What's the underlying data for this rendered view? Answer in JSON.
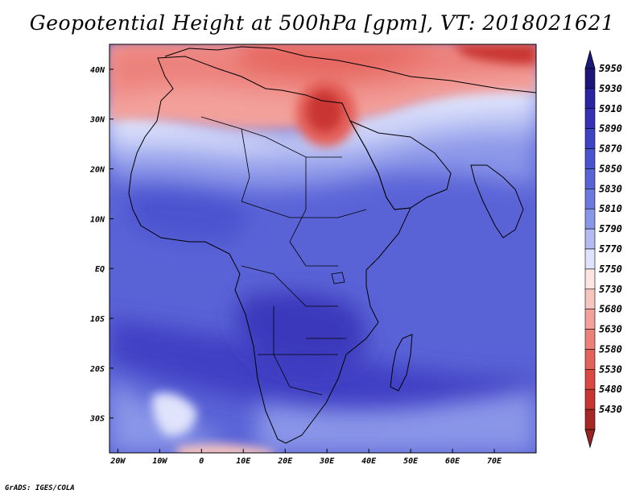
{
  "title": "Geopotential Height at 500hPa [gpm], VT: 2018021621",
  "credit": "GrADS: IGES/COLA",
  "map": {
    "lon_range": [
      -22,
      80
    ],
    "lat_range": [
      -37,
      45
    ],
    "lon_ticks": [
      {
        "value": -20,
        "label": "20W"
      },
      {
        "value": -10,
        "label": "10W"
      },
      {
        "value": 0,
        "label": "0"
      },
      {
        "value": 10,
        "label": "10E"
      },
      {
        "value": 20,
        "label": "20E"
      },
      {
        "value": 30,
        "label": "30E"
      },
      {
        "value": 40,
        "label": "40E"
      },
      {
        "value": 50,
        "label": "50E"
      },
      {
        "value": 60,
        "label": "60E"
      },
      {
        "value": 70,
        "label": "70E"
      }
    ],
    "lat_ticks": [
      {
        "value": 40,
        "label": "40N"
      },
      {
        "value": 30,
        "label": "30N"
      },
      {
        "value": 20,
        "label": "20N"
      },
      {
        "value": 10,
        "label": "10N"
      },
      {
        "value": 0,
        "label": "EQ"
      },
      {
        "value": -10,
        "label": "10S"
      },
      {
        "value": -20,
        "label": "20S"
      },
      {
        "value": -30,
        "label": "30S"
      }
    ]
  },
  "colorbar": {
    "levels": [
      {
        "value": "5950",
        "color": "#1d1577"
      },
      {
        "value": "5930",
        "color": "#2a25a3"
      },
      {
        "value": "5910",
        "color": "#3532b8"
      },
      {
        "value": "5890",
        "color": "#4041c4"
      },
      {
        "value": "5870",
        "color": "#4b52cf"
      },
      {
        "value": "5850",
        "color": "#5a63d6"
      },
      {
        "value": "5830",
        "color": "#6d79de"
      },
      {
        "value": "5810",
        "color": "#8a96e8"
      },
      {
        "value": "5790",
        "color": "#b2bcf2"
      },
      {
        "value": "5770",
        "color": "#dfe3fb"
      },
      {
        "value": "5750",
        "color": "#fde5e2"
      },
      {
        "value": "5730",
        "color": "#f8c4bf"
      },
      {
        "value": "5680",
        "color": "#f3a19c"
      },
      {
        "value": "5630",
        "color": "#ec817c"
      },
      {
        "value": "5580",
        "color": "#e5625c"
      },
      {
        "value": "5530",
        "color": "#db4841"
      },
      {
        "value": "5480",
        "color": "#c93530"
      },
      {
        "value": "5430",
        "color": "#a82624"
      }
    ],
    "top_arrow_color": "#1a1a7a",
    "bottom_arrow_color": "#9a2222"
  }
}
